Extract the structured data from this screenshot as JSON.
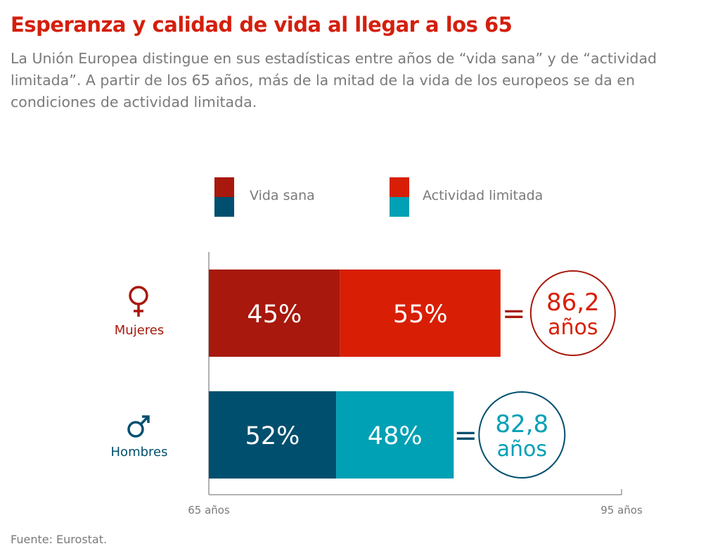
{
  "title": "Esperanza y calidad de vida al llegar a los 65",
  "subtitle": "La Unión Europea distingue en sus estadísticas entre años de “vida sana” y de “actividad limitada”. A partir de los 65 años, más de la mitad de la vida de los europeos se da en condiciones de actividad limitada.",
  "source": "Fuente: Eurostat.",
  "chart_data": {
    "type": "bar",
    "orientation": "horizontal-stacked",
    "xlim": [
      65,
      95
    ],
    "x_tick_labels": [
      "65 años",
      "95 años"
    ],
    "legend": [
      "Vida sana",
      "Actividad limitada"
    ],
    "legend_placement": "top",
    "categories": [
      {
        "name": "Mujeres",
        "icon": "female-symbol-icon",
        "segments_pct": [
          45,
          55
        ],
        "segment_labels": [
          "45%",
          "55%"
        ],
        "total": 86.2,
        "total_label": "86,2",
        "unit": "años",
        "colors": [
          "#a8180c",
          "#d81f05"
        ]
      },
      {
        "name": "Hombres",
        "icon": "male-symbol-icon",
        "segments_pct": [
          52,
          48
        ],
        "segment_labels": [
          "52%",
          "48%"
        ],
        "total": 82.8,
        "total_label": "82,8",
        "unit": "años",
        "colors": [
          "#004f6e",
          "#00a0b5"
        ]
      }
    ],
    "equals_sign": "="
  }
}
